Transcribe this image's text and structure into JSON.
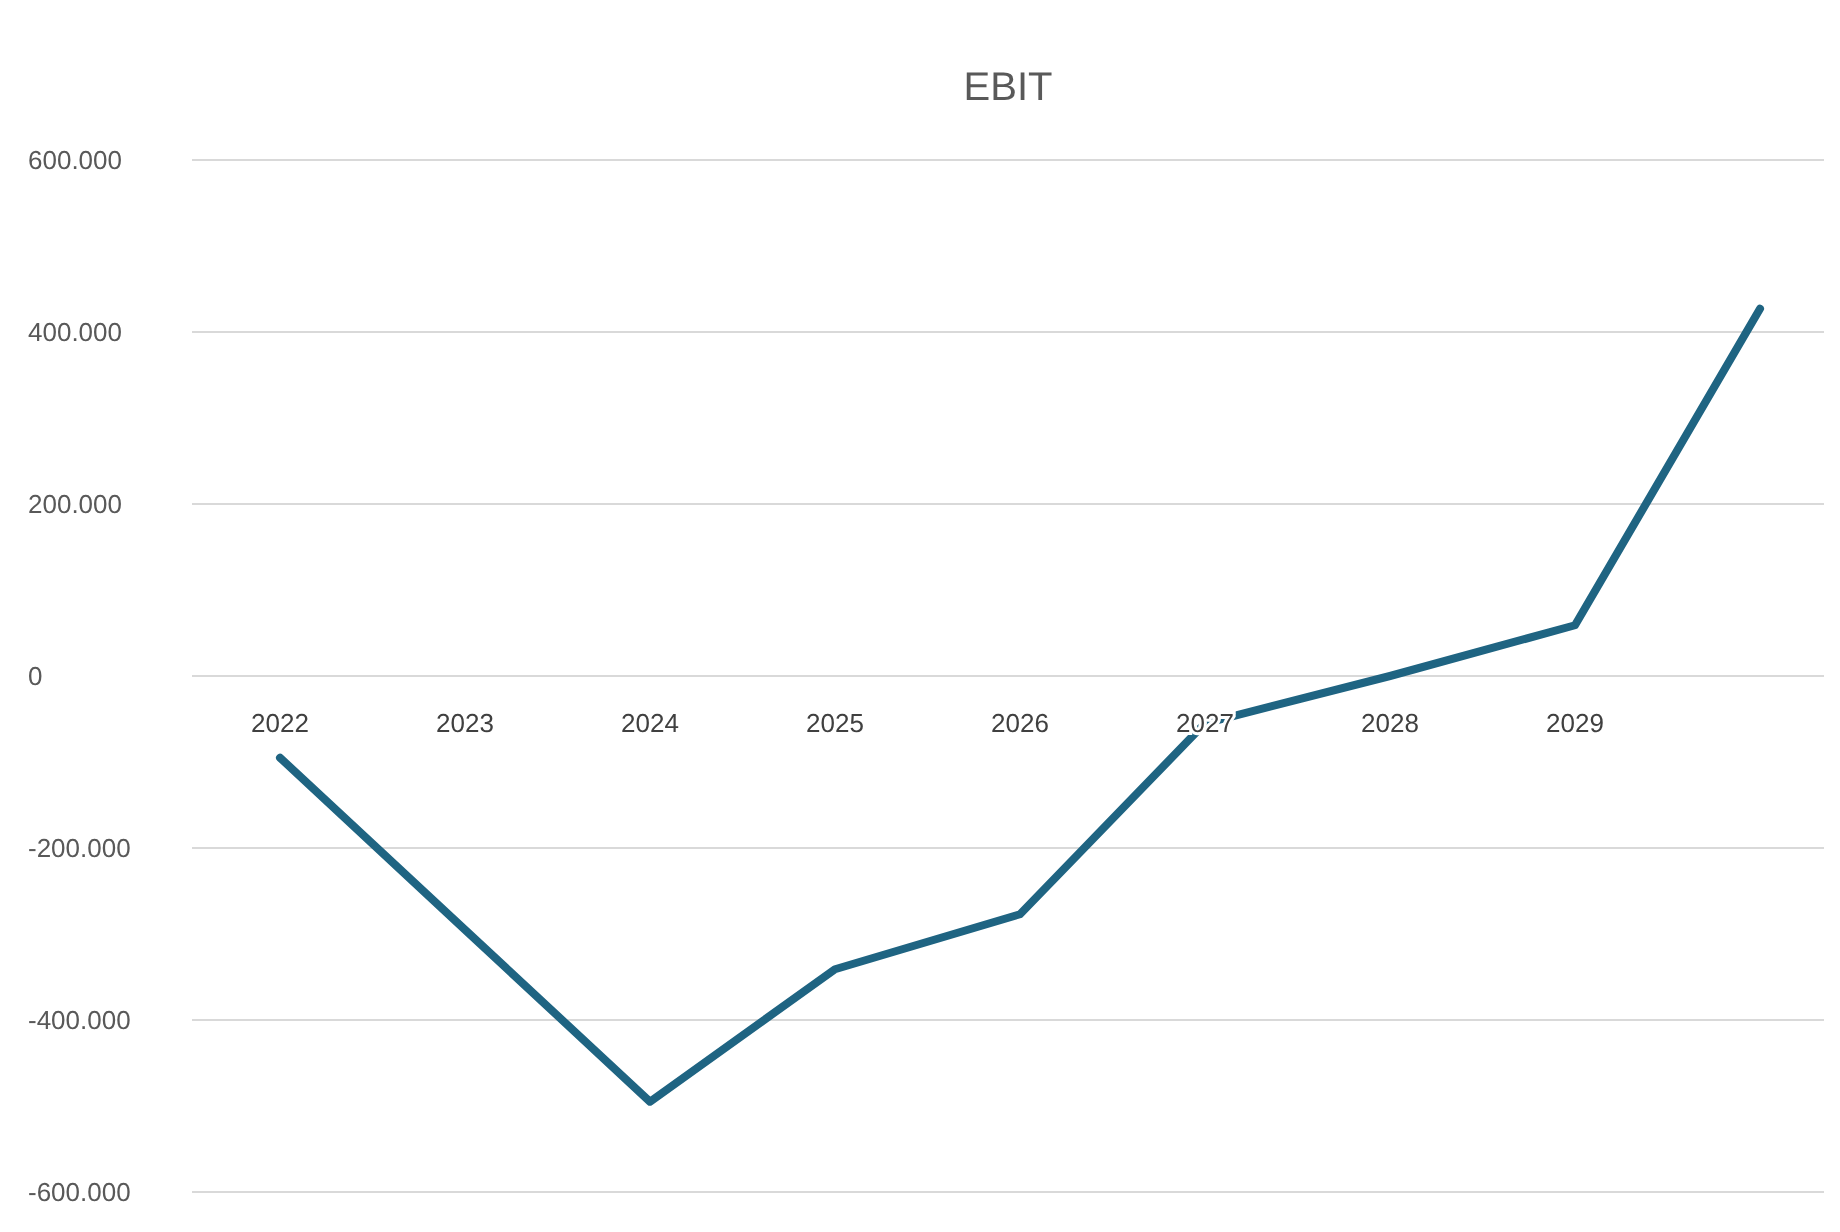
{
  "chart_data": {
    "type": "line",
    "title": "EBIT",
    "categories": [
      "2022",
      "2023",
      "2024",
      "2025",
      "2026",
      "2027",
      "2028",
      "2029",
      null
    ],
    "series": [
      {
        "color": "#1f6482",
        "values": [
          -95000,
          -295000,
          -495000,
          -341000,
          -277000,
          -55000,
          0,
          59000,
          427000
        ]
      }
    ],
    "ylim": [
      -600000,
      600000
    ],
    "yticks": [
      {
        "value": -600000,
        "label": "-600.000"
      },
      {
        "value": -400000,
        "label": "-400.000"
      },
      {
        "value": -200000,
        "label": "-200.000"
      },
      0,
      {
        "value": 200000,
        "label": "200.000"
      },
      {
        "value": 400000,
        "label": "400.000"
      },
      {
        "value": 600000,
        "label": "600.000"
      }
    ],
    "grid": "y",
    "marker": "none",
    "line_style": "solid"
  }
}
